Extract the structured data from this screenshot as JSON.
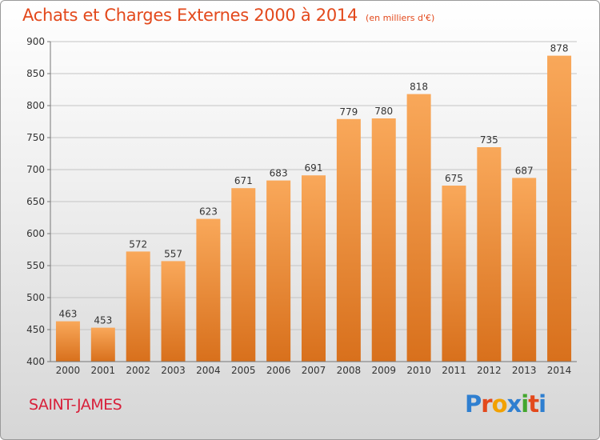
{
  "header": {
    "title": "Achats et Charges Externes 2000 à 2014",
    "unit": "(en milliers d'€)"
  },
  "footer": {
    "city": "SAINT-JAMES",
    "logo_text": "Proxiti",
    "logo_colors": [
      "#2f7fd0",
      "#e3491c",
      "#f2a100",
      "#2f7fd0",
      "#43a62d",
      "#e3491c",
      "#2f7fd0"
    ]
  },
  "colors": {
    "bar_top": "#f9a85a",
    "bar_bottom": "#d8701c",
    "title": "#e3491c",
    "city": "#d8203a"
  },
  "chart_data": {
    "type": "bar",
    "categories": [
      "2000",
      "2001",
      "2002",
      "2003",
      "2004",
      "2005",
      "2006",
      "2007",
      "2008",
      "2009",
      "2010",
      "2011",
      "2012",
      "2013",
      "2014"
    ],
    "values": [
      463,
      453,
      572,
      557,
      623,
      671,
      683,
      691,
      779,
      780,
      818,
      675,
      735,
      687,
      878
    ],
    "ylim": [
      400,
      900
    ],
    "yticks": [
      400,
      450,
      500,
      550,
      600,
      650,
      700,
      750,
      800,
      850,
      900
    ],
    "grid": true,
    "data_labels": true
  }
}
